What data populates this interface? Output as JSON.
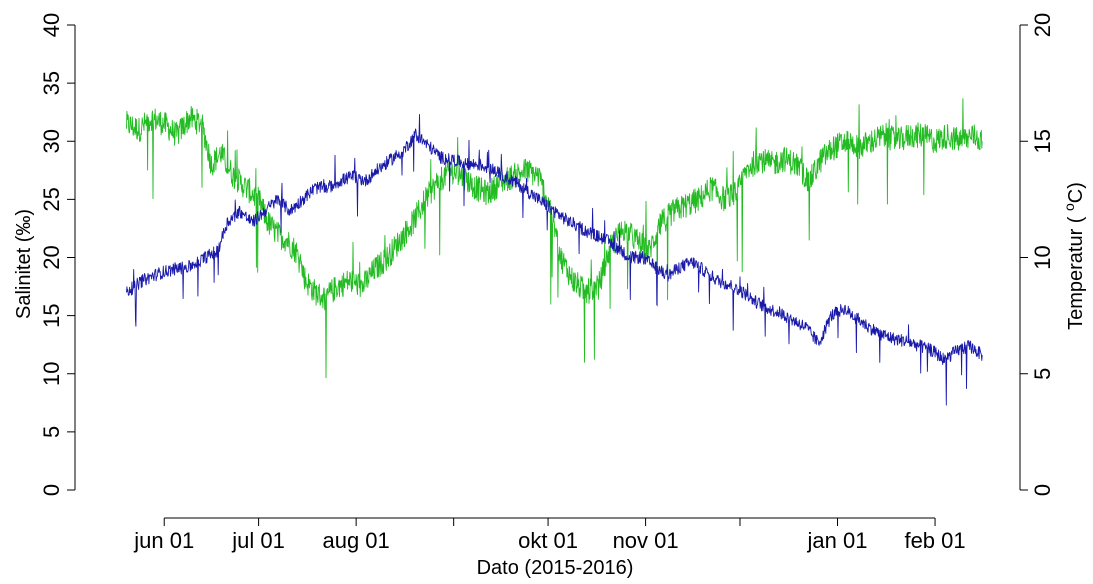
{
  "chart_data": {
    "type": "line",
    "title": "",
    "xlabel": "Dato (2015-2016)",
    "ylabel_left": "Salinitet (‰)",
    "ylabel_right_prefix": "Temperatur ( ",
    "ylabel_right_sup": "o",
    "ylabel_right_suffix": "C)",
    "grid": false,
    "legend": "none",
    "x_range_days": [
      "2015-05-10",
      "2016-02-28"
    ],
    "y_left_range": [
      0,
      40
    ],
    "y_right_range": [
      0,
      20
    ],
    "x_ticks": [
      {
        "date": "2015-06-01",
        "label": "jun 01"
      },
      {
        "date": "2015-07-01",
        "label": "jul 01"
      },
      {
        "date": "2015-08-01",
        "label": "aug 01"
      },
      {
        "date": "2015-09-01",
        "label": ""
      },
      {
        "date": "2015-10-01",
        "label": "okt 01"
      },
      {
        "date": "2015-11-01",
        "label": "nov 01"
      },
      {
        "date": "2015-12-01",
        "label": ""
      },
      {
        "date": "2016-01-01",
        "label": "jan 01"
      },
      {
        "date": "2016-02-01",
        "label": "feb 01"
      }
    ],
    "y_left_ticks": [
      0,
      5,
      10,
      15,
      20,
      25,
      30,
      35,
      40
    ],
    "y_right_ticks": [
      0,
      5,
      10,
      15,
      20
    ],
    "series": [
      {
        "axis": "left",
        "color": "#22bb22",
        "noise": 2.2,
        "points": [
          [
            "2015-05-20",
            31.5
          ],
          [
            "2015-05-24",
            31.0
          ],
          [
            "2015-05-28",
            32.0
          ],
          [
            "2015-06-01",
            31.5
          ],
          [
            "2015-06-05",
            30.5
          ],
          [
            "2015-06-09",
            32.0
          ],
          [
            "2015-06-13",
            31.5
          ],
          [
            "2015-06-16",
            28.0
          ],
          [
            "2015-06-19",
            29.0
          ],
          [
            "2015-06-23",
            27.0
          ],
          [
            "2015-06-27",
            26.0
          ],
          [
            "2015-07-01",
            25.0
          ],
          [
            "2015-07-04",
            23.0
          ],
          [
            "2015-07-07",
            22.0
          ],
          [
            "2015-07-10",
            21.5
          ],
          [
            "2015-07-13",
            20.5
          ],
          [
            "2015-07-16",
            18.0
          ],
          [
            "2015-07-19",
            17.0
          ],
          [
            "2015-07-22",
            16.5
          ],
          [
            "2015-07-26",
            17.5
          ],
          [
            "2015-07-30",
            18.0
          ],
          [
            "2015-08-03",
            17.5
          ],
          [
            "2015-08-07",
            19.0
          ],
          [
            "2015-08-11",
            20.0
          ],
          [
            "2015-08-15",
            21.5
          ],
          [
            "2015-08-19",
            23.0
          ],
          [
            "2015-08-23",
            25.0
          ],
          [
            "2015-08-27",
            26.5
          ],
          [
            "2015-08-31",
            27.5
          ],
          [
            "2015-09-04",
            27.0
          ],
          [
            "2015-09-08",
            26.0
          ],
          [
            "2015-09-12",
            25.5
          ],
          [
            "2015-09-16",
            26.5
          ],
          [
            "2015-09-20",
            27.0
          ],
          [
            "2015-09-24",
            27.5
          ],
          [
            "2015-09-28",
            27.0
          ],
          [
            "2015-10-02",
            24.0
          ],
          [
            "2015-10-05",
            20.0
          ],
          [
            "2015-10-09",
            18.0
          ],
          [
            "2015-10-13",
            17.0
          ],
          [
            "2015-10-17",
            17.5
          ],
          [
            "2015-10-21",
            21.0
          ],
          [
            "2015-10-25",
            22.5
          ],
          [
            "2015-10-29",
            21.5
          ],
          [
            "2015-11-02",
            20.5
          ],
          [
            "2015-11-06",
            23.0
          ],
          [
            "2015-11-10",
            24.0
          ],
          [
            "2015-11-14",
            24.5
          ],
          [
            "2015-11-18",
            25.0
          ],
          [
            "2015-11-22",
            26.0
          ],
          [
            "2015-11-26",
            25.0
          ],
          [
            "2015-11-30",
            25.5
          ],
          [
            "2015-12-03",
            27.5
          ],
          [
            "2015-12-07",
            28.5
          ],
          [
            "2015-12-11",
            28.0
          ],
          [
            "2015-12-15",
            28.5
          ],
          [
            "2015-12-19",
            28.0
          ],
          [
            "2015-12-23",
            26.5
          ],
          [
            "2015-12-27",
            28.5
          ],
          [
            "2015-12-31",
            29.5
          ],
          [
            "2016-01-04",
            30.0
          ],
          [
            "2016-01-08",
            29.5
          ],
          [
            "2016-01-12",
            30.0
          ],
          [
            "2016-01-16",
            30.5
          ],
          [
            "2016-01-20",
            30.0
          ],
          [
            "2016-01-24",
            30.5
          ],
          [
            "2016-01-28",
            30.5
          ],
          [
            "2016-02-01",
            30.0
          ],
          [
            "2016-02-05",
            30.5
          ],
          [
            "2016-02-09",
            30.0
          ],
          [
            "2016-02-13",
            30.5
          ],
          [
            "2016-02-16",
            30.0
          ]
        ]
      },
      {
        "axis": "right",
        "color": "#1a1aaa",
        "noise": 0.55,
        "points": [
          [
            "2015-05-20",
            8.5
          ],
          [
            "2015-05-25",
            9.0
          ],
          [
            "2015-05-30",
            9.3
          ],
          [
            "2015-06-04",
            9.5
          ],
          [
            "2015-06-09",
            9.6
          ],
          [
            "2015-06-14",
            10.0
          ],
          [
            "2015-06-18",
            10.3
          ],
          [
            "2015-06-21",
            11.5
          ],
          [
            "2015-06-25",
            12.0
          ],
          [
            "2015-06-29",
            11.5
          ],
          [
            "2015-07-03",
            12.0
          ],
          [
            "2015-07-07",
            12.5
          ],
          [
            "2015-07-11",
            12.0
          ],
          [
            "2015-07-15",
            12.5
          ],
          [
            "2015-07-19",
            13.0
          ],
          [
            "2015-07-23",
            13.0
          ],
          [
            "2015-07-27",
            13.3
          ],
          [
            "2015-07-31",
            13.5
          ],
          [
            "2015-08-04",
            13.3
          ],
          [
            "2015-08-08",
            13.8
          ],
          [
            "2015-08-12",
            14.2
          ],
          [
            "2015-08-16",
            14.6
          ],
          [
            "2015-08-20",
            15.3
          ],
          [
            "2015-08-24",
            14.8
          ],
          [
            "2015-08-28",
            14.3
          ],
          [
            "2015-09-01",
            14.2
          ],
          [
            "2015-09-05",
            14.0
          ],
          [
            "2015-09-09",
            14.0
          ],
          [
            "2015-09-13",
            13.8
          ],
          [
            "2015-09-17",
            13.5
          ],
          [
            "2015-09-21",
            13.2
          ],
          [
            "2015-09-25",
            12.8
          ],
          [
            "2015-09-29",
            12.4
          ],
          [
            "2015-10-03",
            12.0
          ],
          [
            "2015-10-07",
            11.6
          ],
          [
            "2015-10-11",
            11.3
          ],
          [
            "2015-10-15",
            11.0
          ],
          [
            "2015-10-19",
            10.8
          ],
          [
            "2015-10-23",
            10.4
          ],
          [
            "2015-10-27",
            10.0
          ],
          [
            "2015-10-31",
            10.0
          ],
          [
            "2015-11-04",
            9.6
          ],
          [
            "2015-11-08",
            9.2
          ],
          [
            "2015-11-12",
            9.6
          ],
          [
            "2015-11-16",
            9.8
          ],
          [
            "2015-11-20",
            9.4
          ],
          [
            "2015-11-24",
            9.0
          ],
          [
            "2015-11-28",
            8.8
          ],
          [
            "2015-12-02",
            8.5
          ],
          [
            "2015-12-06",
            8.1
          ],
          [
            "2015-12-10",
            7.8
          ],
          [
            "2015-12-14",
            7.6
          ],
          [
            "2015-12-18",
            7.3
          ],
          [
            "2015-12-22",
            7.0
          ],
          [
            "2015-12-26",
            6.3
          ],
          [
            "2015-12-30",
            7.5
          ],
          [
            "2016-01-03",
            7.8
          ],
          [
            "2016-01-07",
            7.4
          ],
          [
            "2016-01-11",
            7.0
          ],
          [
            "2016-01-15",
            6.7
          ],
          [
            "2016-01-19",
            6.5
          ],
          [
            "2016-01-23",
            6.4
          ],
          [
            "2016-01-27",
            6.2
          ],
          [
            "2016-01-31",
            6.0
          ],
          [
            "2016-02-04",
            5.6
          ],
          [
            "2016-02-08",
            6.0
          ],
          [
            "2016-02-12",
            6.2
          ],
          [
            "2016-02-16",
            5.8
          ]
        ]
      }
    ]
  }
}
